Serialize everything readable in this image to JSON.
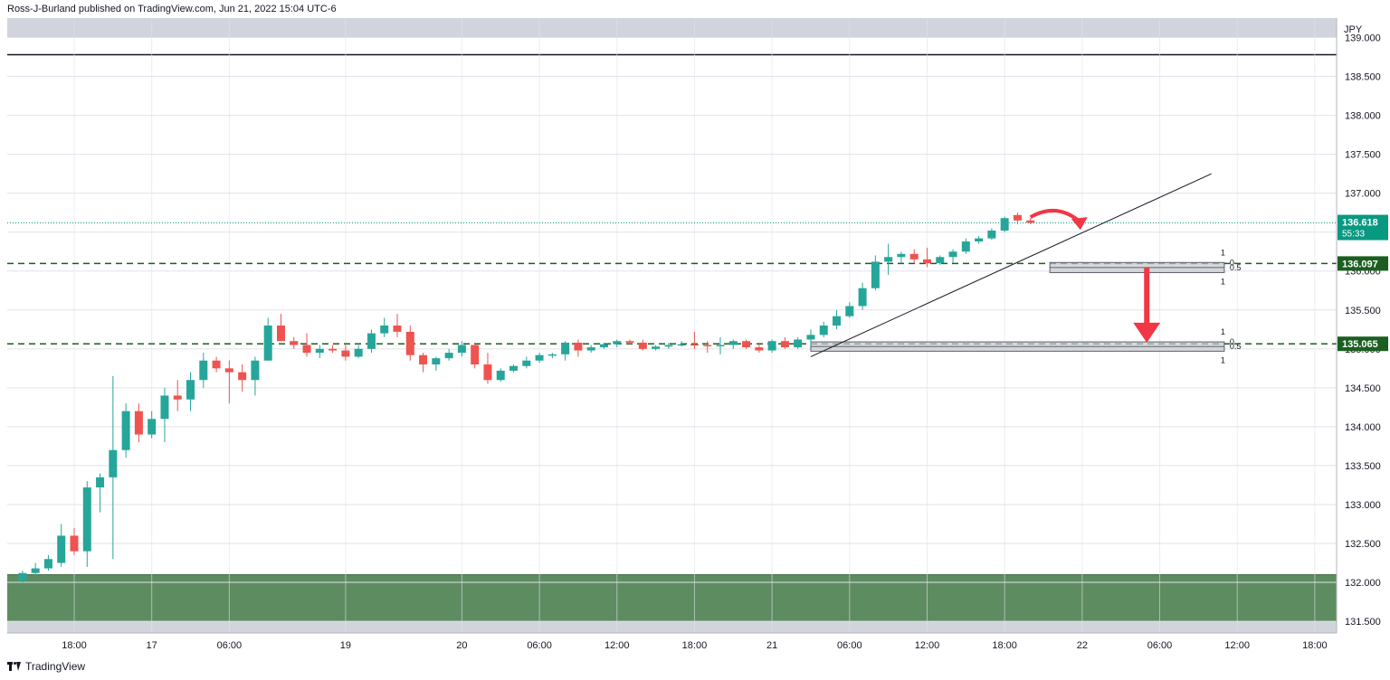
{
  "header": {
    "attribution": "Ross-J-Burland published on TradingView.com, Jun 21, 2022 15:04 UTC-6"
  },
  "footer": {
    "brand": "TradingView"
  },
  "colors": {
    "up": "#26a69a",
    "down": "#ef5350",
    "support_zone": "#5e8c61",
    "dashed_level": "#1b5e20",
    "arrow": "#f23645",
    "price_label": "#089981",
    "level_label": "#1b5e20",
    "grid": "#e0e3eb",
    "gray_band": "#d1d4dc"
  },
  "chart_data": {
    "type": "candlestick",
    "currency": "JPY",
    "ylim": [
      131.35,
      139.25
    ],
    "y_ticks": [
      "131.500",
      "132.000",
      "132.500",
      "133.000",
      "133.500",
      "134.000",
      "134.500",
      "135.000",
      "135.500",
      "136.000",
      "136.500",
      "137.000",
      "137.500",
      "138.000",
      "138.500",
      "139.000"
    ],
    "x_ticks": [
      {
        "label": "18:00",
        "pos": 0
      },
      {
        "label": "17",
        "pos": 6
      },
      {
        "label": "06:00",
        "pos": 12
      },
      {
        "label": "19",
        "pos": 21
      },
      {
        "label": "20",
        "pos": 30
      },
      {
        "label": "06:00",
        "pos": 36
      },
      {
        "label": "12:00",
        "pos": 42
      },
      {
        "label": "18:00",
        "pos": 48
      },
      {
        "label": "21",
        "pos": 54
      },
      {
        "label": "06:00",
        "pos": 60
      },
      {
        "label": "12:00",
        "pos": 66
      },
      {
        "label": "18:00",
        "pos": 72
      },
      {
        "label": "22",
        "pos": 78
      },
      {
        "label": "06:00",
        "pos": 84
      },
      {
        "label": "12:00",
        "pos": 90
      },
      {
        "label": "18:00",
        "pos": 96
      }
    ],
    "candles": [
      [
        -4,
        132.02,
        132.15,
        132.0,
        132.12
      ],
      [
        -3,
        132.12,
        132.25,
        132.05,
        132.18
      ],
      [
        -2,
        132.18,
        132.35,
        132.15,
        132.3
      ],
      [
        -1,
        132.25,
        132.75,
        132.2,
        132.6
      ],
      [
        0,
        132.6,
        132.7,
        132.35,
        132.4
      ],
      [
        1,
        132.4,
        133.3,
        132.2,
        133.22
      ],
      [
        2,
        133.22,
        133.4,
        132.9,
        133.35
      ],
      [
        3,
        133.35,
        134.65,
        132.3,
        133.7
      ],
      [
        4,
        133.7,
        134.3,
        133.6,
        134.2
      ],
      [
        5,
        134.2,
        134.3,
        133.8,
        133.9
      ],
      [
        6,
        133.9,
        134.2,
        133.85,
        134.1
      ],
      [
        7,
        134.1,
        134.5,
        133.8,
        134.4
      ],
      [
        8,
        134.4,
        134.6,
        134.2,
        134.35
      ],
      [
        9,
        134.35,
        134.7,
        134.2,
        134.6
      ],
      [
        10,
        134.6,
        134.95,
        134.5,
        134.85
      ],
      [
        11,
        134.85,
        134.9,
        134.7,
        134.75
      ],
      [
        12,
        134.75,
        134.85,
        134.3,
        134.7
      ],
      [
        13,
        134.7,
        134.8,
        134.45,
        134.6
      ],
      [
        14,
        134.6,
        134.9,
        134.4,
        134.85
      ],
      [
        15,
        134.85,
        135.4,
        134.85,
        135.3
      ],
      [
        16,
        135.3,
        135.45,
        135.1,
        135.1
      ],
      [
        17,
        135.1,
        135.15,
        135.0,
        135.05
      ],
      [
        18,
        135.05,
        135.2,
        134.9,
        134.95
      ],
      [
        19,
        134.95,
        135.05,
        134.88,
        135.0
      ],
      [
        20,
        135.0,
        135.05,
        134.95,
        134.98
      ],
      [
        21,
        134.98,
        135.05,
        134.85,
        134.9
      ],
      [
        22,
        134.9,
        135.05,
        134.88,
        135.0
      ],
      [
        23,
        135.0,
        135.25,
        134.95,
        135.2
      ],
      [
        24,
        135.2,
        135.4,
        135.15,
        135.3
      ],
      [
        25,
        135.3,
        135.45,
        135.15,
        135.22
      ],
      [
        26,
        135.22,
        135.3,
        134.85,
        134.92
      ],
      [
        27,
        134.92,
        134.95,
        134.7,
        134.8
      ],
      [
        28,
        134.8,
        134.9,
        134.72,
        134.88
      ],
      [
        29,
        134.88,
        135.0,
        134.85,
        134.95
      ],
      [
        30,
        134.95,
        135.1,
        134.9,
        135.05
      ],
      [
        31,
        135.05,
        135.08,
        134.75,
        134.8
      ],
      [
        32,
        134.8,
        134.95,
        134.55,
        134.6
      ],
      [
        33,
        134.6,
        134.75,
        134.58,
        134.72
      ],
      [
        34,
        134.72,
        134.8,
        134.7,
        134.78
      ],
      [
        35,
        134.78,
        134.9,
        134.75,
        134.85
      ],
      [
        36,
        134.85,
        134.95,
        134.82,
        134.92
      ],
      [
        37,
        134.92,
        134.95,
        134.88,
        134.93
      ],
      [
        38,
        134.93,
        135.1,
        134.85,
        135.08
      ],
      [
        39,
        135.08,
        135.12,
        134.9,
        134.98
      ],
      [
        40,
        134.98,
        135.05,
        134.95,
        135.02
      ],
      [
        41,
        135.02,
        135.08,
        135.0,
        135.06
      ],
      [
        42,
        135.06,
        135.12,
        135.02,
        135.1
      ],
      [
        43,
        135.1,
        135.12,
        135.06,
        135.08
      ],
      [
        44,
        135.08,
        135.12,
        134.98,
        135.0
      ],
      [
        45,
        135.0,
        135.05,
        134.98,
        135.03
      ],
      [
        46,
        135.03,
        135.08,
        135.0,
        135.05
      ],
      [
        47,
        135.05,
        135.1,
        135.03,
        135.06
      ],
      [
        48,
        135.06,
        135.22,
        135.0,
        135.05
      ],
      [
        49,
        135.05,
        135.1,
        134.95,
        135.04
      ],
      [
        50,
        135.04,
        135.15,
        134.93,
        135.05
      ],
      [
        51,
        135.05,
        135.12,
        135.0,
        135.1
      ],
      [
        52,
        135.1,
        135.12,
        135.0,
        135.02
      ],
      [
        53,
        135.02,
        135.08,
        134.95,
        134.98
      ],
      [
        54,
        134.98,
        135.12,
        134.95,
        135.1
      ],
      [
        55,
        135.1,
        135.15,
        135.0,
        135.02
      ],
      [
        56,
        135.02,
        135.15,
        135.0,
        135.12
      ],
      [
        57,
        135.12,
        135.25,
        135.05,
        135.18
      ],
      [
        58,
        135.18,
        135.35,
        135.15,
        135.3
      ],
      [
        59,
        135.3,
        135.5,
        135.25,
        135.42
      ],
      [
        60,
        135.42,
        135.6,
        135.4,
        135.55
      ],
      [
        61,
        135.55,
        135.85,
        135.5,
        135.78
      ],
      [
        62,
        135.78,
        136.2,
        135.75,
        136.12
      ],
      [
        63,
        136.12,
        136.35,
        135.95,
        136.18
      ],
      [
        64,
        136.18,
        136.25,
        136.1,
        136.22
      ],
      [
        65,
        136.22,
        136.28,
        136.1,
        136.15
      ],
      [
        66,
        136.15,
        136.3,
        136.05,
        136.1
      ],
      [
        67,
        136.1,
        136.2,
        136.08,
        136.18
      ],
      [
        68,
        136.18,
        136.28,
        136.1,
        136.25
      ],
      [
        69,
        136.25,
        136.42,
        136.22,
        136.38
      ],
      [
        70,
        136.38,
        136.45,
        136.35,
        136.42
      ],
      [
        71,
        136.42,
        136.55,
        136.4,
        136.52
      ],
      [
        72,
        136.52,
        136.7,
        136.5,
        136.68
      ],
      [
        73,
        136.72,
        136.75,
        136.6,
        136.65
      ],
      [
        74,
        136.65,
        136.68,
        136.6,
        136.62
      ]
    ],
    "support_zone": [
      131.5,
      132.1
    ],
    "current_price": {
      "value": "136.618",
      "timer": "55:33"
    },
    "levels": [
      {
        "value": "136.097",
        "fib_top": 136.11,
        "fib_bottom": 135.98,
        "fib_start_pos": 75.5,
        "labels": {
          "one_top": "1",
          "zero": "0",
          "half": "0.5",
          "one_bottom": "1"
        }
      },
      {
        "value": "135.065",
        "fib_top": 135.09,
        "fib_bottom": 134.97,
        "fib_start_pos": 57,
        "labels": {
          "one_top": "1",
          "zero": "0",
          "half": "0.5",
          "one_bottom": "1"
        }
      }
    ],
    "fib_end_pos": 89,
    "trendline": {
      "from": [
        57,
        134.9
      ],
      "to": [
        88,
        137.25
      ]
    },
    "arrow": {
      "pos": 83,
      "from": 136.04,
      "to": 135.08
    },
    "curved_arrow": {
      "from_pos": 74,
      "to_pos": 78,
      "y": 136.67
    },
    "grid": true
  }
}
